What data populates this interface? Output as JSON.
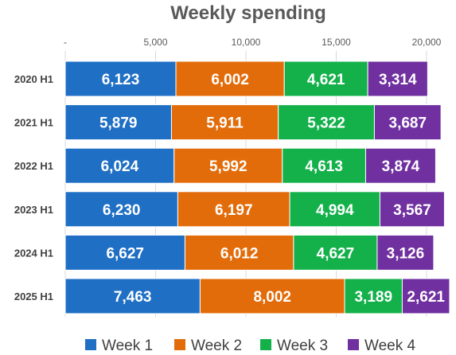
{
  "chart_data": {
    "type": "bar",
    "orientation": "horizontal",
    "stacked": true,
    "title": "Weekly spending",
    "xlabel": "",
    "ylabel": "",
    "xlim": [
      0,
      20000
    ],
    "x_ticks": [
      0,
      5000,
      10000,
      15000,
      20000
    ],
    "x_tick_labels": [
      "-",
      "5,000",
      "10,000",
      "15,000",
      "20,000"
    ],
    "grid": true,
    "legend_position": "bottom",
    "categories": [
      "2020 H1",
      "2021 H1",
      "2022 H1",
      "2023 H1",
      "2024 H1",
      "2025 H1"
    ],
    "series": [
      {
        "name": "Week 1",
        "color": "#1f6fc5",
        "values": [
          6123,
          5879,
          6024,
          6230,
          6627,
          7463
        ],
        "labels": [
          "6,123",
          "5,879",
          "6,024",
          "6,230",
          "6,627",
          "7,463"
        ]
      },
      {
        "name": "Week 2",
        "color": "#e36c0a",
        "values": [
          6002,
          5911,
          5992,
          6197,
          6012,
          8002
        ],
        "labels": [
          "6,002",
          "5,911",
          "5,992",
          "6,197",
          "6,012",
          "8,002"
        ]
      },
      {
        "name": "Week 3",
        "color": "#14b14b",
        "values": [
          4621,
          5322,
          4613,
          4994,
          4627,
          3189
        ],
        "labels": [
          "4,621",
          "5,322",
          "4,613",
          "4,994",
          "4,627",
          "3,189"
        ]
      },
      {
        "name": "Week 4",
        "color": "#7030a0",
        "values": [
          3314,
          3687,
          3874,
          3567,
          3126,
          2621
        ],
        "labels": [
          "3,314",
          "3,687",
          "3,874",
          "3,567",
          "3,126",
          "2,621"
        ]
      }
    ]
  }
}
